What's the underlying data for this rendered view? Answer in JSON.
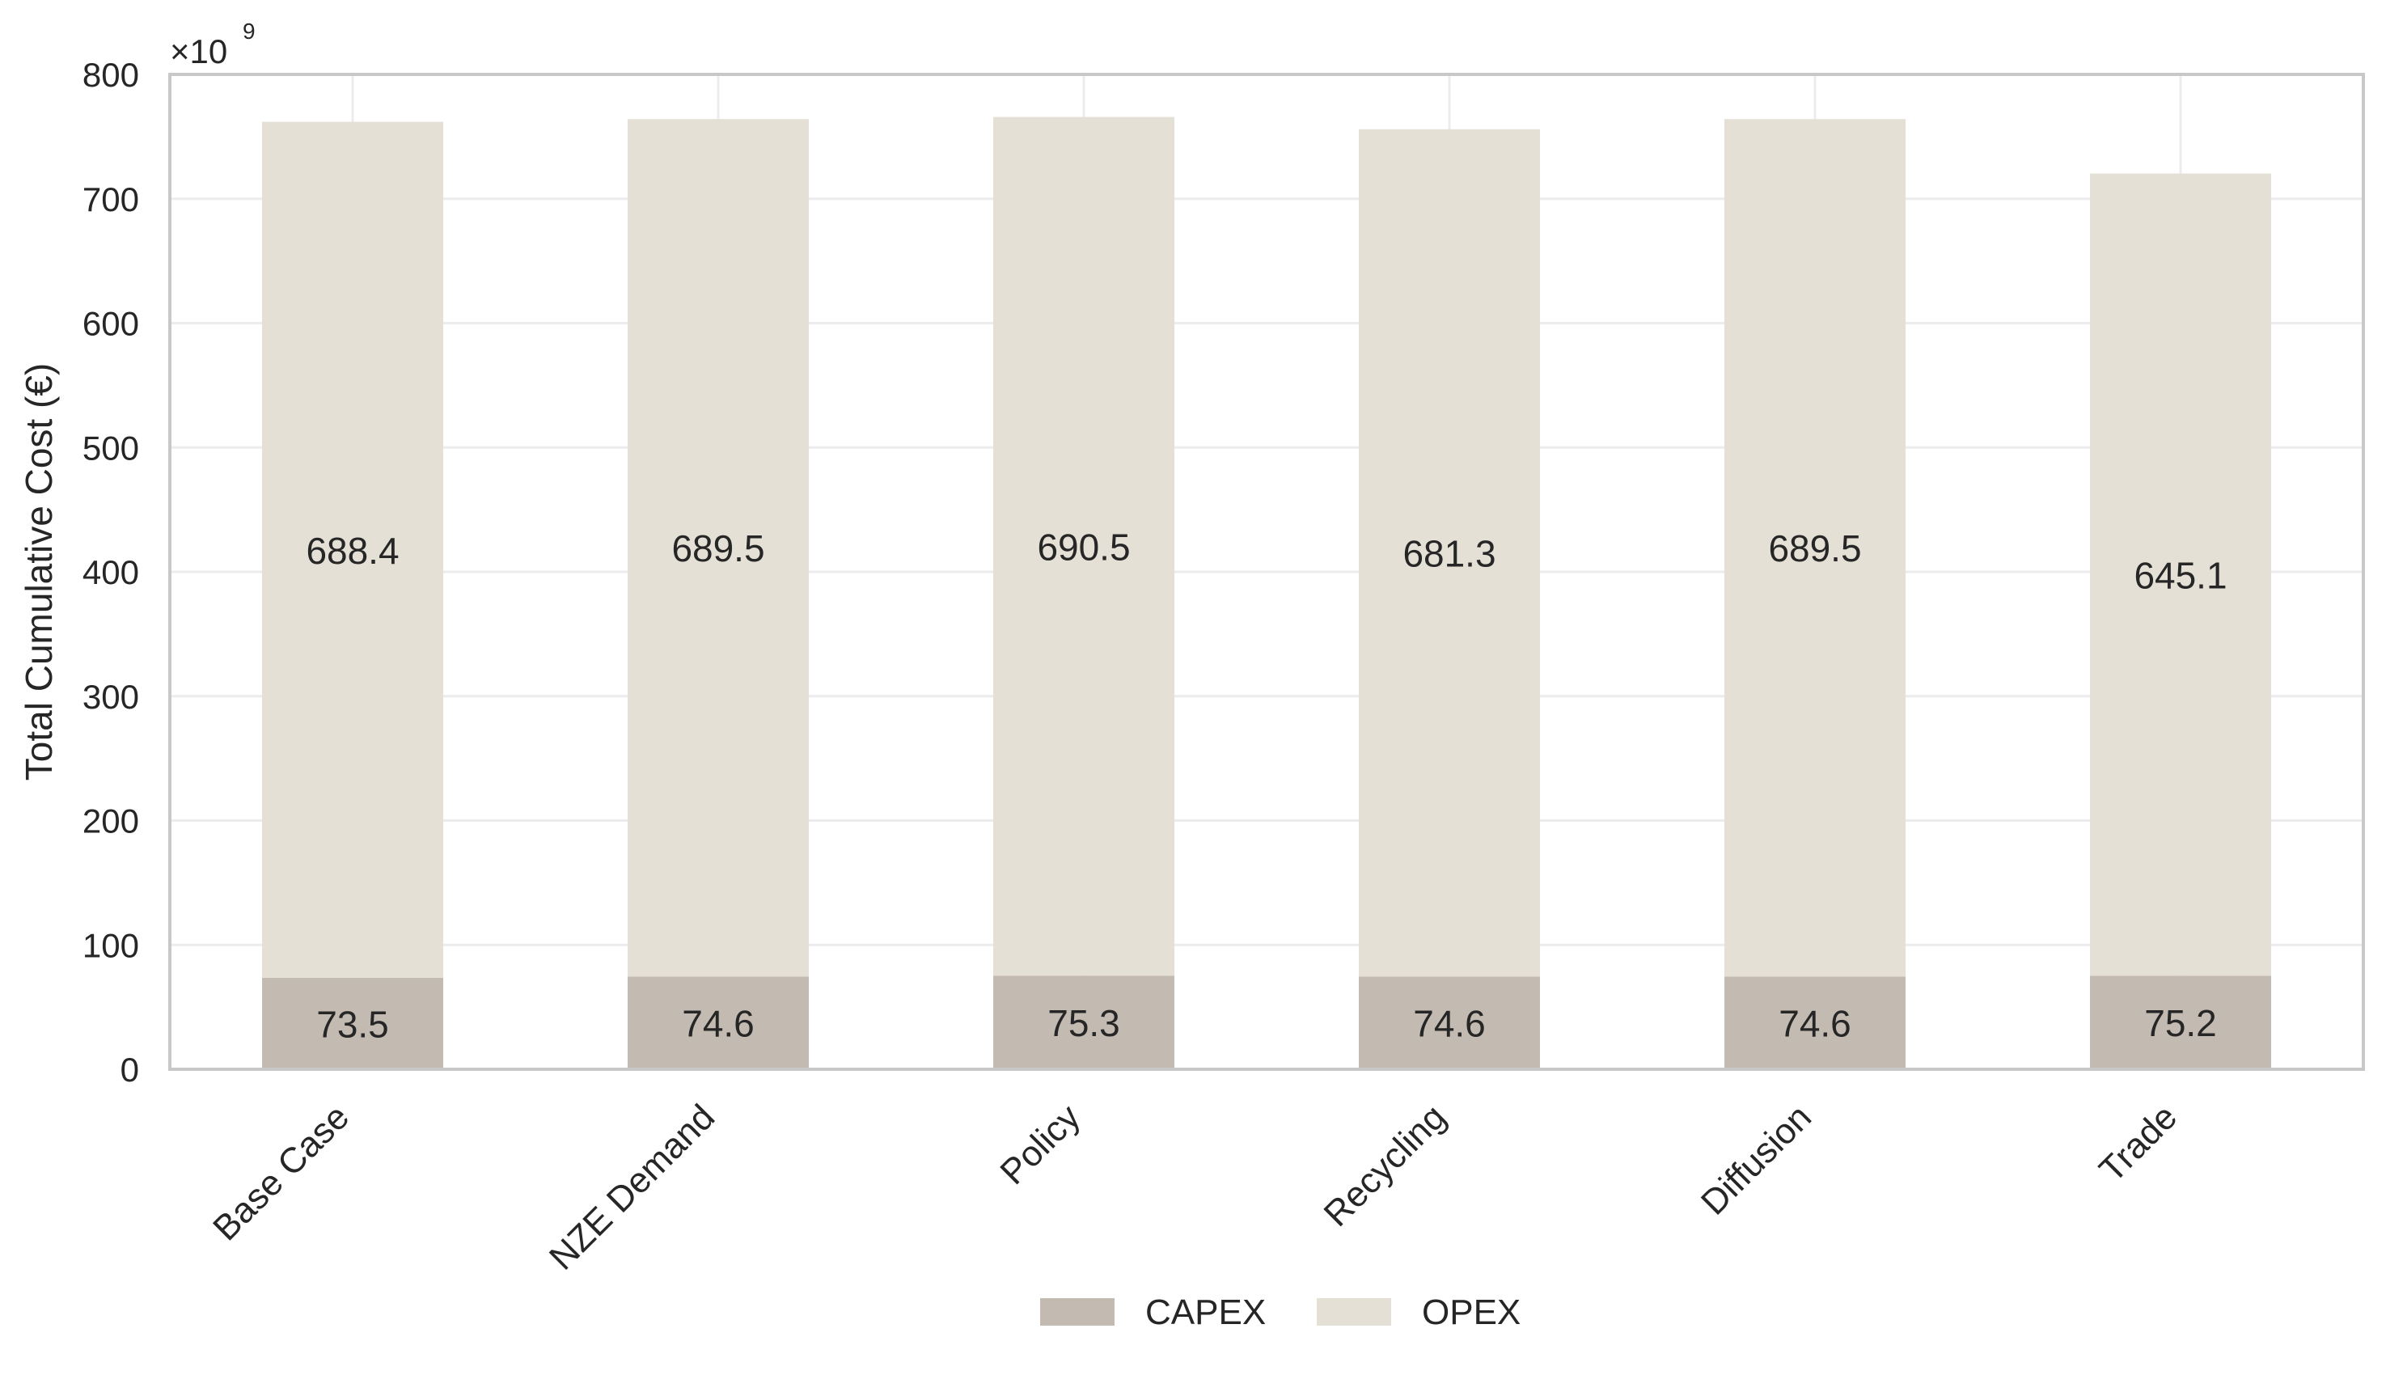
{
  "chart_data": {
    "type": "bar",
    "stacked": true,
    "title": "",
    "xlabel": "",
    "ylabel": "Total Cumulative Cost (€)",
    "y_scale_label": "×10",
    "y_scale_exponent": "9",
    "ylim": [
      0,
      800
    ],
    "yticks": [
      "0",
      "100",
      "200",
      "300",
      "400",
      "500",
      "600",
      "700",
      "800"
    ],
    "categories": [
      "Base Case",
      "NZE Demand",
      "Policy",
      "Recycling",
      "Diffusion",
      "Trade"
    ],
    "series": [
      {
        "name": "CAPEX",
        "color": "#c3bbb2",
        "values": [
          73.5,
          74.6,
          75.3,
          74.6,
          74.6,
          75.2
        ],
        "labels": [
          "73.5",
          "74.6",
          "75.3",
          "74.6",
          "74.6",
          "75.2"
        ]
      },
      {
        "name": "OPEX",
        "color": "#e5e0d6",
        "values": [
          688.4,
          689.5,
          690.5,
          681.3,
          689.5,
          645.1
        ],
        "labels": [
          "688.4",
          "689.5",
          "690.5",
          "681.3",
          "689.5",
          "645.1"
        ]
      }
    ],
    "grid": true,
    "legend": "bottom-center"
  }
}
